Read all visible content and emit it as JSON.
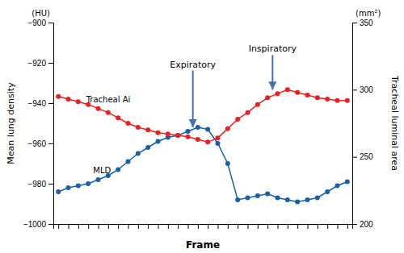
{
  "chart_data": {
    "type": "line",
    "xlabel": "Frame",
    "ylabel": "Mean lung density",
    "ylabel_unit": "(HU)",
    "y2label": "Tracheal luminal area",
    "y2label_unit": "(mm²)",
    "x": [
      1,
      2,
      3,
      4,
      5,
      6,
      7,
      8,
      9,
      10,
      11,
      12,
      13,
      14,
      15,
      16,
      17,
      18,
      19,
      20,
      21,
      22,
      23,
      24,
      25,
      26,
      27,
      28,
      29,
      30
    ],
    "series": [
      {
        "color": "#1a5fa8",
        "marker": "circle",
        "values": [
          -984,
          -982,
          -981,
          -980,
          -978,
          -976,
          -973,
          -969,
          -965,
          -962,
          -959,
          -957,
          -956,
          -954,
          -952,
          -953,
          -960,
          -970,
          -988,
          -987,
          -986,
          -985,
          -987,
          -988,
          -989,
          -988,
          -987,
          -984,
          -981,
          -979
        ]
      },
      {
        "color": "#e82020",
        "marker": "circle",
        "axis": "y2",
        "values": [
          295,
          293,
          291,
          289,
          286,
          283,
          279,
          275,
          272,
          270,
          268,
          267,
          266,
          265,
          263,
          261,
          264,
          271,
          278,
          283,
          289,
          294,
          297,
          300,
          298,
          296,
          294,
          293,
          292,
          292
        ]
      }
    ],
    "xlim": [
      0.5,
      30.5
    ],
    "xticks": [
      1,
      2,
      3,
      4,
      5,
      6,
      7,
      8,
      9,
      10,
      11,
      12,
      13,
      14,
      15,
      16,
      17,
      18,
      19,
      20,
      21,
      22,
      23,
      24,
      25,
      26,
      27,
      28,
      29,
      30
    ],
    "ylim": [
      -1000,
      -900
    ],
    "yticks": [
      {
        "value": -1000,
        "label": "−1000"
      },
      {
        "value": -980,
        "label": "−980"
      },
      {
        "value": -960,
        "label": "−960"
      },
      {
        "value": -940,
        "label": "−940"
      },
      {
        "value": -920,
        "label": "−920"
      },
      {
        "value": -900,
        "label": "−900"
      }
    ],
    "y2lim": [
      200,
      350
    ],
    "y2ticks": [
      200,
      250,
      300,
      350
    ],
    "tick_labels": "y",
    "annotations": [
      {
        "text": "Tracheal Ai",
        "x": 3.8,
        "y": 289,
        "axis": "y2"
      },
      {
        "text": "MLD",
        "x": 4.5,
        "y": -976
      },
      {
        "text": "Expiratory",
        "x": 14.5,
        "y": -952,
        "text_y": -923,
        "color": "#4472a8"
      },
      {
        "text": "Inspiratory",
        "x": 22.5,
        "y": 300,
        "text_y": 327,
        "axis": "y2",
        "color": "#4472a8"
      }
    ]
  }
}
